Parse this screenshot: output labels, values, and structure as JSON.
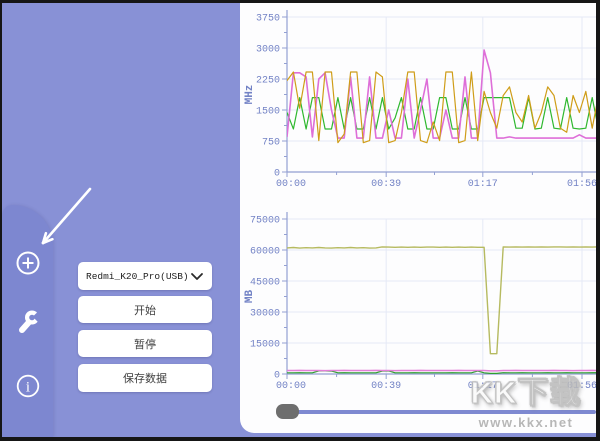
{
  "theme": {
    "window_bg": "#8891d6",
    "strip_bg": "#7d87d0",
    "border": "#161616",
    "card_bg": "#fdfdfe",
    "axis": "#93a0d2",
    "grid": "#e5e9f6",
    "tick": "#7282c5",
    "slider_track": "#7e89d1",
    "slider_thumb": "#6e6e6e"
  },
  "sidebar": {
    "icons": [
      {
        "name": "add-device",
        "glyph": "plus-circle"
      },
      {
        "name": "settings",
        "glyph": "wrench"
      },
      {
        "name": "about",
        "glyph": "info-circle"
      }
    ],
    "device_select": {
      "value": "Redmi_K20_Pro(USB)"
    },
    "buttons": {
      "start": "开始",
      "pause": "暂停",
      "save": "保存数据"
    }
  },
  "watermark": {
    "title": "KK下载",
    "url": "www.kkx.net"
  },
  "slider": {
    "position_percent": 0
  },
  "chart_data": [
    {
      "type": "line",
      "name": "cpu-frequency",
      "title": "",
      "xlabel": "",
      "ylabel": "MHz",
      "ylim": [
        0,
        3750
      ],
      "yticks": [
        0,
        750,
        1500,
        2250,
        3000,
        3750
      ],
      "xlim_seconds": [
        0,
        121
      ],
      "xticks": {
        "positions": [
          0,
          39,
          77,
          116
        ],
        "labels": [
          "00:00",
          "00:39",
          "01:17",
          "01:56"
        ]
      },
      "grid": true,
      "legend": false,
      "x_start": 0,
      "x_step": 2.5,
      "series": [
        {
          "name": "freq-green",
          "color": "#2fb82f",
          "width": 1.2,
          "values": [
            1440,
            1040,
            1800,
            1040,
            1800,
            1800,
            1040,
            1040,
            1800,
            1040,
            1800,
            1040,
            1040,
            1800,
            1040,
            1800,
            1040,
            1310,
            1800,
            1040,
            1040,
            1800,
            1040,
            1040,
            1800,
            1800,
            1040,
            1040,
            1800,
            1040,
            1040,
            1800,
            1800,
            1800,
            1800,
            1800,
            1060,
            1060,
            1800,
            1040,
            1060,
            1800,
            1060,
            1040,
            1800,
            1060,
            1040,
            1060,
            1800,
            1040
          ]
        },
        {
          "name": "freq-magenta",
          "color": "#de6fd8",
          "width": 1.6,
          "values": [
            850,
            2400,
            2400,
            2300,
            850,
            2250,
            2400,
            1500,
            820,
            820,
            2300,
            820,
            820,
            2300,
            820,
            820,
            1500,
            820,
            820,
            2250,
            820,
            1500,
            2250,
            820,
            820,
            1500,
            820,
            820,
            2300,
            820,
            820,
            2950,
            2400,
            820,
            820,
            850,
            820,
            820,
            820,
            820,
            820,
            820,
            820,
            820,
            820,
            820,
            900,
            820,
            820,
            820
          ]
        },
        {
          "name": "freq-orange",
          "color": "#cf9d18",
          "width": 1.2,
          "values": [
            2210,
            2420,
            1540,
            2420,
            2420,
            760,
            2420,
            2420,
            710,
            920,
            2420,
            2420,
            710,
            760,
            2420,
            2300,
            710,
            760,
            1440,
            2420,
            2420,
            760,
            710,
            1210,
            760,
            2420,
            2420,
            710,
            760,
            2420,
            760,
            1950,
            1440,
            1060,
            1850,
            2060,
            1440,
            1210,
            1850,
            1060,
            1440,
            2060,
            1850,
            1060,
            960,
            1850,
            1440,
            1950,
            1060,
            1850
          ]
        }
      ]
    },
    {
      "type": "line",
      "name": "memory",
      "title": "",
      "xlabel": "",
      "ylabel": "MB",
      "ylim": [
        0,
        75000
      ],
      "yticks": [
        0,
        15000,
        30000,
        45000,
        60000,
        75000
      ],
      "xlim_seconds": [
        0,
        121
      ],
      "xticks": {
        "positions": [
          0,
          39,
          77,
          116
        ],
        "labels": [
          "00:00",
          "00:39",
          "01:17",
          "01:56"
        ]
      },
      "grid": true,
      "legend": false,
      "x_start": 0,
      "x_step": 2.5,
      "series": [
        {
          "name": "mem-olive",
          "color": "#b6ba60",
          "width": 1.4,
          "values": [
            61000,
            61200,
            60900,
            61100,
            61000,
            61200,
            61000,
            60900,
            61100,
            61000,
            61200,
            61000,
            61100,
            60900,
            61000,
            61500,
            61400,
            61300,
            61400,
            61300,
            61400,
            61300,
            61400,
            61400,
            61300,
            61400,
            61300,
            61400,
            61300,
            61400,
            61300,
            61300,
            9800,
            9800,
            61500,
            61400,
            61500,
            61400,
            61500,
            61400,
            61500,
            61400,
            61500,
            61500,
            61400,
            61500,
            61400,
            61500,
            61400,
            61500
          ]
        },
        {
          "name": "mem-green",
          "color": "#2e9e2e",
          "width": 1.2,
          "values": [
            600,
            600,
            650,
            600,
            600,
            1500,
            1500,
            1400,
            600,
            650,
            600,
            600,
            600,
            600,
            600,
            1450,
            1500,
            600,
            600,
            600,
            650,
            600,
            600,
            600,
            600,
            600,
            650,
            600,
            600,
            600,
            1400,
            600,
            300,
            300,
            650,
            600,
            600,
            650,
            600,
            600,
            600,
            650,
            600,
            600,
            650,
            600,
            600,
            600,
            650,
            600
          ]
        },
        {
          "name": "mem-magenta",
          "color": "#e37fd8",
          "width": 1.5,
          "values": [
            1700,
            1700,
            1750,
            1700,
            1700,
            1700,
            1650,
            1700,
            1700,
            1750,
            1700,
            1700,
            1700,
            1700,
            1750,
            1700,
            1700,
            1650,
            1700,
            1700,
            1700,
            1750,
            1700,
            1700,
            1700,
            1700,
            1700,
            1750,
            1700,
            1700,
            1700,
            1700,
            1500,
            1500,
            1700,
            1700,
            1750,
            1700,
            1700,
            1700,
            1700,
            1700,
            1750,
            1700,
            1700,
            1650,
            1700,
            1700,
            1750,
            1700
          ]
        }
      ]
    }
  ]
}
